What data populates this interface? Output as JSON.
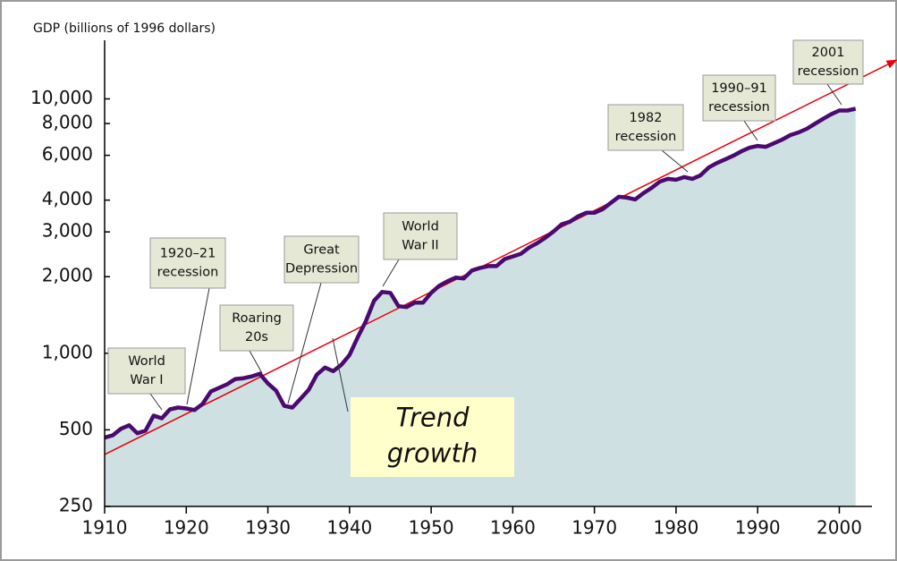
{
  "chart_data": {
    "type": "area-line",
    "y_label": "GDP (billions of 1996 dollars)",
    "log_scale": true,
    "xlim": [
      1910,
      2004
    ],
    "xticks": [
      1910,
      1920,
      1930,
      1940,
      1950,
      1960,
      1970,
      1980,
      1990,
      2000
    ],
    "ylim": [
      250,
      17000
    ],
    "yticks": [
      250,
      500,
      {
        "value": 1000,
        "label": "1,000"
      },
      {
        "value": 2000,
        "label": "2,000"
      },
      {
        "value": 3000,
        "label": "3,000"
      },
      {
        "value": 4000,
        "label": "4,000"
      },
      {
        "value": 6000,
        "label": "6,000"
      },
      {
        "value": 8000,
        "label": "8,000"
      },
      {
        "value": 10000,
        "label": "10,000"
      }
    ],
    "x": [
      1910,
      1911,
      1912,
      1913,
      1914,
      1915,
      1916,
      1917,
      1918,
      1919,
      1920,
      1921,
      1922,
      1923,
      1924,
      1925,
      1926,
      1927,
      1928,
      1929,
      1930,
      1931,
      1932,
      1933,
      1934,
      1935,
      1936,
      1937,
      1938,
      1939,
      1940,
      1941,
      1942,
      1943,
      1944,
      1945,
      1946,
      1947,
      1948,
      1949,
      1950,
      1951,
      1952,
      1953,
      1954,
      1955,
      1956,
      1957,
      1958,
      1959,
      1960,
      1961,
      1962,
      1963,
      1964,
      1965,
      1966,
      1967,
      1968,
      1969,
      1970,
      1971,
      1972,
      1973,
      1974,
      1975,
      1976,
      1977,
      1978,
      1979,
      1980,
      1981,
      1982,
      1983,
      1984,
      1985,
      1986,
      1987,
      1988,
      1989,
      1990,
      1991,
      1992,
      1993,
      1994,
      1995,
      1996,
      1997,
      1998,
      1999,
      2000,
      2001,
      2002
    ],
    "values": [
      466,
      476,
      505,
      521,
      485,
      496,
      569,
      555,
      602,
      612,
      607,
      598,
      632,
      707,
      731,
      755,
      792,
      798,
      811,
      831,
      761,
      713,
      622,
      612,
      663,
      719,
      824,
      879,
      851,
      901,
      984,
      1156,
      1337,
      1608,
      1742,
      1728,
      1532,
      1519,
      1582,
      1582,
      1728,
      1844,
      1920,
      1983,
      1968,
      2115,
      2166,
      2201,
      2201,
      2347,
      2403,
      2462,
      2604,
      2713,
      2848,
      3012,
      3212,
      3290,
      3453,
      3566,
      3566,
      3684,
      3898,
      4124,
      4091,
      4025,
      4261,
      4468,
      4728,
      4847,
      4808,
      4929,
      4847,
      5007,
      5373,
      5596,
      5781,
      5973,
      6221,
      6427,
      6532,
      6479,
      6694,
      6916,
      7203,
      7380,
      7623,
      7976,
      8345,
      8700,
      9000,
      9000,
      9150
    ],
    "color": "#4b0a6e",
    "area_color": "#cfe0e3",
    "trend": {
      "x": [
        1910,
        2007
      ],
      "values": [
        400,
        14200
      ],
      "color": "#e8000b"
    },
    "annotations": [
      {
        "lines": [
          "World",
          "War I"
        ]
      },
      {
        "lines": [
          "1920–21",
          "recession"
        ]
      },
      {
        "lines": [
          "Roaring",
          "20s"
        ]
      },
      {
        "lines": [
          "Great",
          "Depression"
        ]
      },
      {
        "lines": [
          "World",
          "War II"
        ]
      },
      {
        "lines": [
          "1982",
          "recession"
        ]
      },
      {
        "lines": [
          "1990–91",
          "recession"
        ]
      },
      {
        "lines": [
          "2001",
          "recession"
        ]
      },
      {
        "lines": [
          "Trend",
          "growth"
        ]
      }
    ]
  }
}
